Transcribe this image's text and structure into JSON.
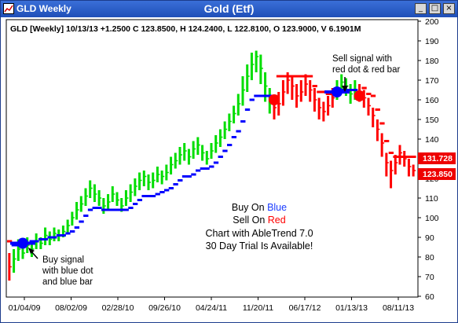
{
  "window": {
    "title": "GLD Weekly",
    "chart_title": "Gold (Etf)",
    "min_glyph": "_",
    "max_glyph": "□",
    "close_glyph": "×",
    "colors": {
      "titlebar": "#1f4fb8"
    }
  },
  "info_line": "GLD [Weekly] 10/13/13 +1.2500 C 123.8500, H 124.2400, L 122.8100, O 123.9000, V 6.1901M",
  "annotations": {
    "sell_signal": [
      "Sell signal with",
      "red dot & red bar"
    ],
    "buy_signal": [
      "Buy signal",
      "with blue dot",
      "and blue bar"
    ]
  },
  "promo": {
    "buy_prefix": "Buy On ",
    "buy_word": "Blue",
    "sell_prefix": "Sell On ",
    "sell_word": "Red",
    "line3": "Chart with AbleTrend 7.0",
    "line4": "30 Day Trial Is Available!"
  },
  "price_labels": {
    "upper": "131.728",
    "lower": "123.850"
  },
  "chart_data": {
    "type": "bar",
    "title": "Gold (Etf)",
    "x_tick_labels": [
      "01/04/09",
      "08/02/09",
      "02/28/10",
      "09/26/10",
      "04/24/11",
      "11/20/11",
      "06/17/12",
      "01/13/13",
      "08/11/13"
    ],
    "y_ticks": [
      60,
      70,
      80,
      90,
      100,
      110,
      120,
      130,
      140,
      150,
      160,
      170,
      180,
      190,
      200
    ],
    "ylim": [
      60,
      200
    ],
    "grid": false,
    "series": [
      {
        "name": "Weekly bars",
        "values": [
          [
            0,
            75,
            68,
            82
          ],
          [
            1,
            79,
            72,
            84
          ],
          [
            2,
            84,
            78,
            89
          ],
          [
            3,
            82,
            79,
            87
          ],
          [
            4,
            86,
            82,
            90
          ],
          [
            5,
            84,
            80,
            88
          ],
          [
            6,
            88,
            84,
            92
          ],
          [
            7,
            87,
            84,
            90
          ],
          [
            8,
            91,
            86,
            95
          ],
          [
            9,
            89,
            86,
            93
          ],
          [
            10,
            92,
            88,
            95
          ],
          [
            11,
            91,
            88,
            94
          ],
          [
            12,
            93,
            90,
            96
          ],
          [
            13,
            96,
            92,
            99
          ],
          [
            14,
            100,
            96,
            103
          ],
          [
            15,
            104,
            99,
            108
          ],
          [
            16,
            107,
            103,
            111
          ],
          [
            17,
            111,
            106,
            115
          ],
          [
            18,
            115,
            110,
            119
          ],
          [
            19,
            112,
            108,
            117
          ],
          [
            20,
            110,
            106,
            114
          ],
          [
            21,
            106,
            102,
            110
          ],
          [
            22,
            108,
            104,
            112
          ],
          [
            23,
            112,
            108,
            116
          ],
          [
            24,
            109,
            106,
            113
          ],
          [
            25,
            106,
            103,
            110
          ],
          [
            26,
            110,
            106,
            114
          ],
          [
            27,
            113,
            108,
            117
          ],
          [
            28,
            116,
            111,
            120
          ],
          [
            29,
            119,
            114,
            123
          ],
          [
            30,
            121,
            116,
            124
          ],
          [
            31,
            118,
            114,
            122
          ],
          [
            32,
            119,
            115,
            123
          ],
          [
            33,
            122,
            118,
            126
          ],
          [
            34,
            121,
            117,
            124
          ],
          [
            35,
            123,
            119,
            127
          ],
          [
            36,
            127,
            122,
            131
          ],
          [
            37,
            129,
            125,
            133
          ],
          [
            38,
            132,
            127,
            136
          ],
          [
            39,
            134,
            129,
            138
          ],
          [
            40,
            131,
            127,
            135
          ],
          [
            41,
            135,
            130,
            139
          ],
          [
            42,
            137,
            132,
            141
          ],
          [
            43,
            133,
            129,
            137
          ],
          [
            44,
            130,
            127,
            134
          ],
          [
            45,
            134,
            130,
            138
          ],
          [
            46,
            138,
            133,
            142
          ],
          [
            47,
            141,
            136,
            145
          ],
          [
            48,
            145,
            140,
            149
          ],
          [
            49,
            149,
            144,
            153
          ],
          [
            50,
            153,
            148,
            157
          ],
          [
            51,
            158,
            152,
            163
          ],
          [
            52,
            165,
            157,
            172
          ],
          [
            53,
            172,
            164,
            178
          ],
          [
            54,
            178,
            170,
            184
          ],
          [
            55,
            182,
            174,
            185
          ],
          [
            56,
            176,
            168,
            183
          ],
          [
            57,
            167,
            159,
            174
          ],
          [
            58,
            160,
            153,
            166
          ],
          [
            59,
            156,
            150,
            162
          ],
          [
            60,
            158,
            152,
            164
          ],
          [
            61,
            164,
            157,
            170
          ],
          [
            62,
            170,
            163,
            174
          ],
          [
            63,
            167,
            160,
            172
          ],
          [
            64,
            162,
            156,
            168
          ],
          [
            65,
            164,
            159,
            170
          ],
          [
            66,
            168,
            162,
            173
          ],
          [
            67,
            165,
            159,
            170
          ],
          [
            68,
            160,
            154,
            166
          ],
          [
            69,
            156,
            150,
            161
          ],
          [
            70,
            154,
            149,
            159
          ],
          [
            71,
            157,
            152,
            162
          ],
          [
            72,
            161,
            156,
            166
          ],
          [
            73,
            165,
            160,
            170
          ],
          [
            74,
            169,
            164,
            173
          ],
          [
            75,
            167,
            162,
            171
          ],
          [
            76,
            163,
            158,
            168
          ],
          [
            77,
            165,
            160,
            170
          ],
          [
            78,
            164,
            159,
            168
          ],
          [
            79,
            161,
            156,
            165
          ],
          [
            80,
            157,
            152,
            161
          ],
          [
            81,
            152,
            146,
            156
          ],
          [
            82,
            145,
            139,
            150
          ],
          [
            83,
            138,
            131,
            143
          ],
          [
            84,
            128,
            121,
            133
          ],
          [
            85,
            124,
            115,
            129
          ],
          [
            86,
            128,
            122,
            132
          ],
          [
            87,
            133,
            127,
            137
          ],
          [
            88,
            130,
            126,
            134
          ],
          [
            89,
            126,
            121,
            130
          ],
          [
            90,
            124,
            121,
            127
          ]
        ]
      },
      {
        "name": "AbleTrend stops",
        "values": [
          [
            0,
            88,
            "r"
          ],
          [
            1,
            86,
            "b"
          ],
          [
            2,
            86,
            "b"
          ],
          [
            3,
            87,
            "b"
          ],
          [
            4,
            87,
            "b"
          ],
          [
            5,
            88,
            "b"
          ],
          [
            6,
            88,
            "b"
          ],
          [
            7,
            89,
            "b"
          ],
          [
            8,
            89,
            "b"
          ],
          [
            9,
            90,
            "b"
          ],
          [
            10,
            90,
            "b"
          ],
          [
            11,
            91,
            "b"
          ],
          [
            12,
            91,
            "b"
          ],
          [
            13,
            92,
            "b"
          ],
          [
            14,
            93,
            "b"
          ],
          [
            15,
            95,
            "b"
          ],
          [
            16,
            98,
            "b"
          ],
          [
            17,
            101,
            "b"
          ],
          [
            18,
            104,
            "b"
          ],
          [
            19,
            105,
            "b"
          ],
          [
            20,
            105,
            "b"
          ],
          [
            21,
            104,
            "b"
          ],
          [
            22,
            104,
            "b"
          ],
          [
            23,
            104,
            "b"
          ],
          [
            24,
            104,
            "b"
          ],
          [
            25,
            104,
            "b"
          ],
          [
            26,
            104,
            "b"
          ],
          [
            27,
            105,
            "b"
          ],
          [
            28,
            107,
            "b"
          ],
          [
            29,
            109,
            "b"
          ],
          [
            30,
            111,
            "b"
          ],
          [
            31,
            111,
            "b"
          ],
          [
            32,
            111,
            "b"
          ],
          [
            33,
            112,
            "b"
          ],
          [
            34,
            113,
            "b"
          ],
          [
            35,
            114,
            "b"
          ],
          [
            36,
            115,
            "b"
          ],
          [
            37,
            117,
            "b"
          ],
          [
            38,
            119,
            "b"
          ],
          [
            39,
            121,
            "b"
          ],
          [
            40,
            121,
            "b"
          ],
          [
            41,
            122,
            "b"
          ],
          [
            42,
            124,
            "b"
          ],
          [
            43,
            125,
            "b"
          ],
          [
            44,
            125,
            "b"
          ],
          [
            45,
            126,
            "b"
          ],
          [
            46,
            128,
            "b"
          ],
          [
            47,
            131,
            "b"
          ],
          [
            48,
            134,
            "b"
          ],
          [
            49,
            137,
            "b"
          ],
          [
            50,
            141,
            "b"
          ],
          [
            51,
            144,
            "b"
          ],
          [
            52,
            149,
            "b"
          ],
          [
            53,
            155,
            "b"
          ],
          [
            54,
            160,
            "b"
          ],
          [
            55,
            162,
            "b"
          ],
          [
            56,
            162,
            "b"
          ],
          [
            57,
            162,
            "b"
          ],
          [
            58,
            162,
            "b"
          ],
          [
            59,
            162,
            "r"
          ],
          [
            60,
            172,
            "r"
          ],
          [
            61,
            172,
            "r"
          ],
          [
            62,
            172,
            "r"
          ],
          [
            63,
            172,
            "r"
          ],
          [
            64,
            172,
            "r"
          ],
          [
            65,
            172,
            "r"
          ],
          [
            66,
            172,
            "r"
          ],
          [
            67,
            172,
            "r"
          ],
          [
            68,
            167,
            "r"
          ],
          [
            69,
            164,
            "r"
          ],
          [
            70,
            164,
            "r"
          ],
          [
            71,
            163,
            "r"
          ],
          [
            72,
            163,
            "r"
          ],
          [
            73,
            164,
            "b"
          ],
          [
            74,
            165,
            "b"
          ],
          [
            75,
            165,
            "b"
          ],
          [
            76,
            165,
            "b"
          ],
          [
            77,
            165,
            "b"
          ],
          [
            78,
            162,
            "r"
          ],
          [
            79,
            166,
            "r"
          ],
          [
            80,
            163,
            "r"
          ],
          [
            81,
            162,
            "r"
          ],
          [
            82,
            155,
            "r"
          ],
          [
            83,
            148,
            "r"
          ],
          [
            84,
            139,
            "r"
          ],
          [
            85,
            133,
            "r"
          ],
          [
            86,
            131,
            "r"
          ],
          [
            87,
            131,
            "r"
          ],
          [
            88,
            131,
            "r"
          ],
          [
            89,
            131,
            "r"
          ],
          [
            90,
            131,
            "r"
          ]
        ]
      }
    ],
    "signals": [
      {
        "type": "buy",
        "index": 3,
        "price": 87
      },
      {
        "type": "sell",
        "index": 59,
        "price": 160
      },
      {
        "type": "buy",
        "index": 73,
        "price": 164
      },
      {
        "type": "sell",
        "index": 78,
        "price": 162
      }
    ],
    "colors": {
      "up": "#00dd00",
      "down": "#ff0000",
      "buy": "#0000ff",
      "sell": "#ff0000",
      "mixed": "#00aa00"
    }
  }
}
